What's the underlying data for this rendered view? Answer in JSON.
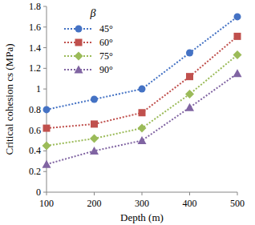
{
  "chart_data": {
    "type": "line",
    "x_label": "Depth (m)",
    "y_label": "Critical cohesion cs (MPa)",
    "legend_title": "β",
    "x": [
      100,
      200,
      300,
      400,
      500
    ],
    "xlim": [
      100,
      500
    ],
    "xticks": [
      100,
      200,
      300,
      400,
      500
    ],
    "ylim": [
      0,
      1.8
    ],
    "yticks": [
      0,
      0.2,
      0.4,
      0.6,
      0.8,
      1,
      1.2,
      1.4,
      1.6,
      1.8
    ],
    "grid": false,
    "legend": "upper left",
    "line_style": "dotted",
    "series": [
      {
        "name": "45°",
        "color": "#4472c4",
        "marker": "circle",
        "values": [
          0.8,
          0.9,
          1.0,
          1.35,
          1.7
        ]
      },
      {
        "name": "60°",
        "color": "#c0504d",
        "marker": "square",
        "values": [
          0.62,
          0.66,
          0.77,
          1.12,
          1.51
        ]
      },
      {
        "name": "75°",
        "color": "#9bbb59",
        "marker": "diamond",
        "values": [
          0.45,
          0.52,
          0.62,
          0.95,
          1.33
        ]
      },
      {
        "name": "90°",
        "color": "#8064a2",
        "marker": "triangle",
        "values": [
          0.27,
          0.4,
          0.5,
          0.82,
          1.15
        ]
      }
    ]
  }
}
